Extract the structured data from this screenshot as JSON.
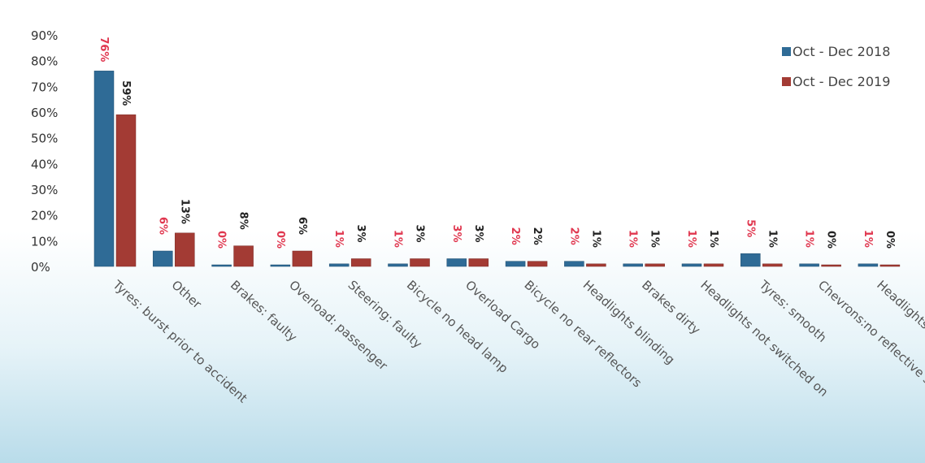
{
  "chart_data": {
    "type": "bar",
    "categories": [
      "Tyres: burst prior to accident",
      "Other",
      "Brakes: faulty",
      "Overload: passenger",
      "Steering: faulty",
      "Bicycle no head lamp",
      "Overload Cargo",
      "Bicycle no rear reflectors",
      "Headlights blinding",
      "Brakes dirty",
      "Headlights not switched on",
      "Tyres: smooth",
      "Chevrons:no reflective stripes",
      "Headlights faulty"
    ],
    "series": [
      {
        "name": "Oct - Dec 2018",
        "color": "#2f6b96",
        "label_color": "#e0374f",
        "values": [
          76,
          6,
          0,
          0,
          1,
          1,
          3,
          2,
          2,
          1,
          1,
          5,
          1,
          1
        ],
        "labels": [
          "76%",
          "6%",
          "0%",
          "0%",
          "1%",
          "1%",
          "3%",
          "2%",
          "2%",
          "1%",
          "1%",
          "5%",
          "1%",
          "1%"
        ]
      },
      {
        "name": "Oct - Dec 2019",
        "color": "#a33b34",
        "label_color": "#222222",
        "values": [
          59,
          13,
          8,
          6,
          3,
          3,
          3,
          2,
          1,
          1,
          1,
          1,
          0,
          0
        ],
        "labels": [
          "59%",
          "13%",
          "8%",
          "6%",
          "3%",
          "3%",
          "3%",
          "2%",
          "1%",
          "1%",
          "1%",
          "1%",
          "0%",
          "0%"
        ]
      }
    ],
    "y_ticks": [
      "0%",
      "10%",
      "20%",
      "30%",
      "40%",
      "50%",
      "60%",
      "70%",
      "80%",
      "90%"
    ],
    "ylim": [
      0,
      90
    ],
    "legend_position": "top-right",
    "grid": false
  }
}
